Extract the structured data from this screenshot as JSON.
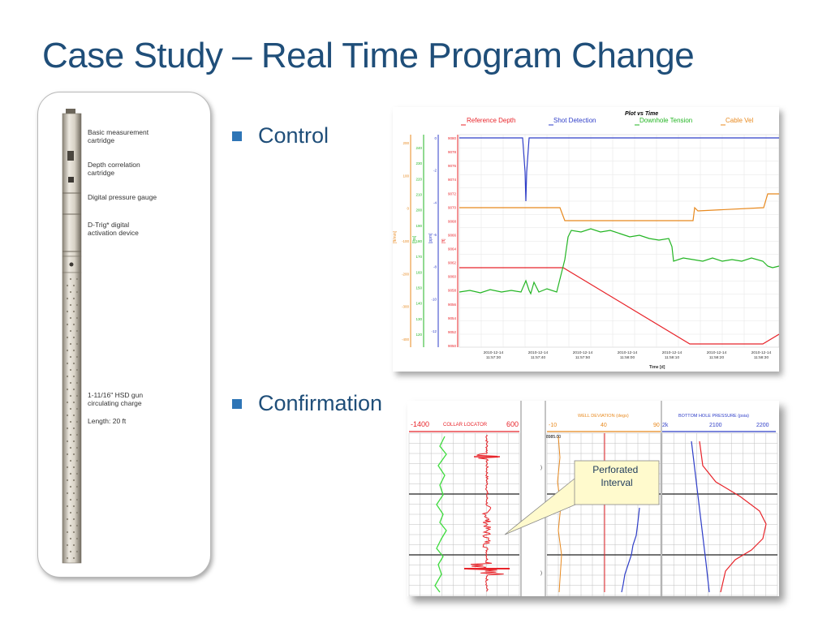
{
  "slide": {
    "title": "Case Study – Real Time Program Change",
    "bullets": [
      "Control",
      "Confirmation"
    ]
  },
  "tool_string": {
    "labels": [
      {
        "text": "Basic measurement\ncartridge"
      },
      {
        "text": "Depth correlation\ncartridge"
      },
      {
        "text": "Digital pressure gauge"
      },
      {
        "text": "D-Trig* digital\nactivation device"
      },
      {
        "text": "1-11/16\" HSD gun\ncirculating charge"
      },
      {
        "text": "Length: 20 ft"
      }
    ]
  },
  "plot_vs_time": {
    "title": "Plot vs Time",
    "legend": [
      {
        "name": "Reference Depth",
        "color": "#e8242a"
      },
      {
        "name": "Shot Detection",
        "color": "#2f3ec8"
      },
      {
        "name": "Downhole Tension",
        "color": "#23b523"
      },
      {
        "name": "Cable Vel",
        "color": "#e8891e"
      }
    ],
    "xlabel": "Time [d]",
    "x_ticks": [
      "2010-12-14\n11:57:30",
      "2010-12-14\n11:57:40",
      "2010-12-14\n11:57:50",
      "2010-12-14\n11:58:00",
      "2010-12-14\n11:58:10",
      "2010-12-14\n11:58:20",
      "2010-12-14\n11:58:30"
    ],
    "axis_units": [
      "[ft/min]",
      "[lbs]",
      "[ppm]",
      "[ft]"
    ],
    "axis_orange_ticks": [
      "200",
      "100",
      "0",
      "-100",
      "-200",
      "-300",
      "-400"
    ],
    "axis_green_ticks": [
      "240",
      "230",
      "220",
      "210",
      "200",
      "190",
      "180",
      "170",
      "160",
      "150",
      "140",
      "130",
      "120"
    ],
    "axis_blue_ticks": [
      "0",
      "-2",
      "-4",
      "-6",
      "-8",
      "-10",
      "-12"
    ],
    "axis_red_ticks": [
      "9080",
      "9078",
      "9076",
      "9074",
      "9072",
      "9070",
      "9068",
      "9066",
      "9064",
      "9062",
      "9060",
      "9058",
      "9056",
      "9054",
      "9052",
      "9050"
    ]
  },
  "log": {
    "track1": {
      "left": "-1400",
      "title": "COLLAR LOCATOR",
      "right": "600"
    },
    "track2": {
      "left": "-10",
      "title": "WELL DEVIATION (degs)",
      "mid": "40",
      "right": "90"
    },
    "track3": {
      "left": "2k",
      "title": "BOTTOM HOLE PRESSURE (psia)",
      "mid": "2100",
      "right": "2200"
    },
    "depth_label": "8985.00",
    "callout": "Perforated\nInterval"
  }
}
